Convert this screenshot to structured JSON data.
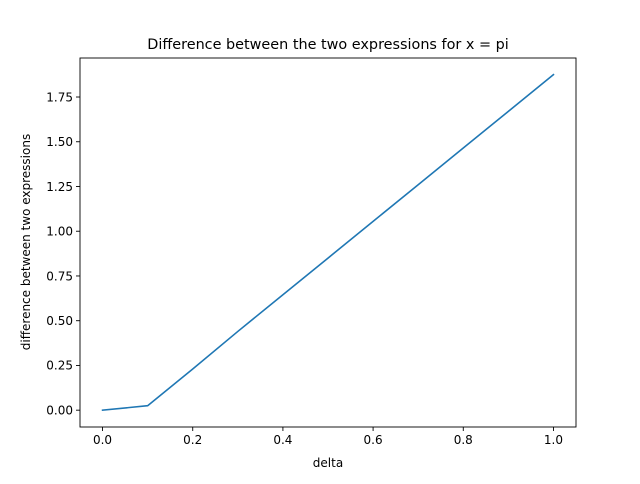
{
  "chart_data": {
    "type": "line",
    "title": "Difference between the two expressions for x = pi",
    "xlabel": "delta",
    "ylabel": "difference between two expressions",
    "xlim": [
      -0.05,
      1.05
    ],
    "ylim": [
      -0.094,
      1.968
    ],
    "xticks": [
      0.0,
      0.2,
      0.4,
      0.6,
      0.8,
      1.0
    ],
    "xtick_labels": [
      "0.0",
      "0.2",
      "0.4",
      "0.6",
      "0.8",
      "1.0"
    ],
    "yticks": [
      0.0,
      0.25,
      0.5,
      0.75,
      1.0,
      1.25,
      1.5,
      1.75
    ],
    "ytick_labels": [
      "0.00",
      "0.25",
      "0.50",
      "0.75",
      "1.00",
      "1.25",
      "1.50",
      "1.75"
    ],
    "grid": false,
    "series": [
      {
        "color": "#1f77b4",
        "x": [
          0.0,
          0.1,
          0.2,
          0.3,
          0.4,
          0.5,
          0.6,
          0.7,
          0.8,
          0.9,
          1.0
        ],
        "y": [
          0.0,
          0.025,
          0.23,
          0.44,
          0.645,
          0.85,
          1.055,
          1.26,
          1.465,
          1.67,
          1.875
        ]
      }
    ]
  }
}
